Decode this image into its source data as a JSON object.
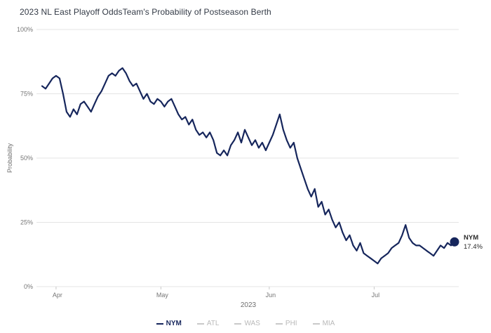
{
  "header": {
    "title": "2023 NL East Playoff OddsTeam's Probability of Postseason Berth"
  },
  "chart_data": {
    "type": "line",
    "title": "2023 NL East Playoff Odds",
    "subtitle": "Team's Probability of Postseason Berth",
    "xlabel": "2023",
    "ylabel": "Probability",
    "ylim": [
      0,
      100
    ],
    "yticks": [
      0,
      25,
      50,
      75,
      100
    ],
    "ytick_labels": [
      "0%",
      "25%",
      "50%",
      "75%",
      "100%"
    ],
    "xticks": [
      4,
      34,
      65,
      95
    ],
    "xtick_labels": [
      "Apr",
      "May",
      "Jun",
      "Jul"
    ],
    "grid": "horizontal",
    "legend_position": "bottom-center",
    "series": [
      {
        "name": "NYM",
        "color": "#16265c",
        "values": [
          78,
          77,
          79,
          81,
          82,
          81,
          75,
          68,
          66,
          69,
          67,
          71,
          72,
          70,
          68,
          71,
          74,
          76,
          79,
          82,
          83,
          82,
          84,
          85,
          83,
          80,
          78,
          79,
          76,
          73,
          75,
          72,
          71,
          73,
          72,
          70,
          72,
          73,
          70,
          67,
          65,
          66,
          63,
          65,
          61,
          59,
          60,
          58,
          60,
          57,
          52,
          51,
          53,
          51,
          55,
          57,
          60,
          56,
          61,
          58,
          55,
          57,
          54,
          56,
          53,
          56,
          59,
          63,
          67,
          61,
          57,
          54,
          56,
          50,
          46,
          42,
          38,
          35,
          38,
          31,
          33,
          28,
          30,
          26,
          23,
          25,
          21,
          18,
          20,
          16,
          14,
          17,
          13,
          12,
          11,
          10,
          9,
          11,
          12,
          13,
          15,
          16,
          17,
          20,
          24,
          19,
          17,
          16,
          16,
          15,
          14,
          13,
          12,
          14,
          16,
          15,
          17,
          16,
          17.4
        ]
      }
    ],
    "end_label": {
      "team": "NYM",
      "value": "17.4%"
    },
    "legend": [
      {
        "label": "NYM",
        "color": "#16265c",
        "active": true
      },
      {
        "label": "ATL",
        "color": "#c9c9c9",
        "active": false
      },
      {
        "label": "WAS",
        "color": "#c9c9c9",
        "active": false
      },
      {
        "label": "PHI",
        "color": "#c9c9c9",
        "active": false
      },
      {
        "label": "MIA",
        "color": "#c9c9c9",
        "active": false
      }
    ]
  }
}
